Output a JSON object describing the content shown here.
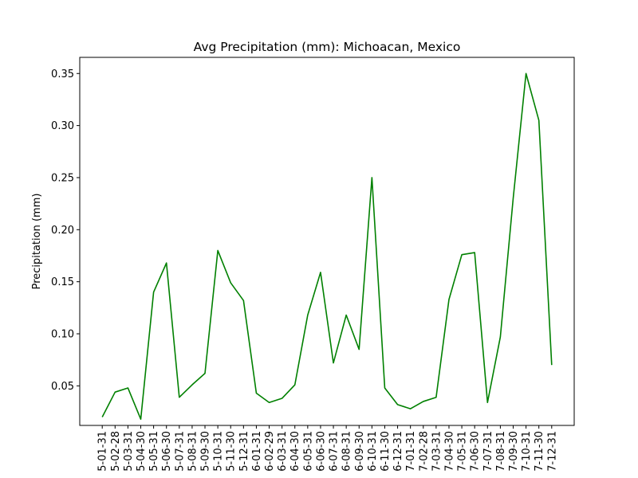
{
  "chart_data": {
    "type": "line",
    "title": "Avg Precipitation (mm): Michoacan, Mexico",
    "xlabel": "",
    "ylabel": "Precipitation (mm)",
    "ylim": [
      0.012,
      0.3655
    ],
    "yticks": [
      0.05,
      0.1,
      0.15,
      0.2,
      0.25,
      0.3,
      0.35
    ],
    "ytick_labels": [
      "0.05",
      "0.10",
      "0.15",
      "0.20",
      "0.25",
      "0.30",
      "0.35"
    ],
    "grid": false,
    "legend": "none",
    "line_color": "#008000",
    "categories": [
      "5-01-31",
      "5-02-28",
      "5-03-31",
      "5-04-30",
      "5-05-31",
      "5-06-30",
      "5-07-31",
      "5-08-31",
      "5-09-30",
      "5-10-31",
      "5-11-30",
      "5-12-31",
      "6-01-31",
      "6-02-29",
      "6-03-31",
      "6-04-30",
      "6-05-31",
      "6-06-30",
      "6-07-31",
      "6-08-31",
      "6-09-30",
      "6-10-31",
      "6-11-30",
      "6-12-31",
      "7-01-31",
      "7-02-28",
      "7-03-31",
      "7-04-30",
      "7-05-31",
      "7-06-30",
      "7-07-31",
      "7-08-31",
      "7-09-30",
      "7-10-31",
      "7-11-30",
      "7-12-31"
    ],
    "values": [
      0.02,
      0.044,
      0.048,
      0.018,
      0.14,
      0.168,
      0.039,
      0.051,
      0.062,
      0.18,
      0.149,
      0.132,
      0.043,
      0.034,
      0.038,
      0.051,
      0.118,
      0.159,
      0.072,
      0.118,
      0.085,
      0.25,
      0.048,
      0.032,
      0.028,
      0.035,
      0.039,
      0.133,
      0.176,
      0.178,
      0.034,
      0.097,
      0.23,
      0.35,
      0.305,
      0.07
    ]
  }
}
